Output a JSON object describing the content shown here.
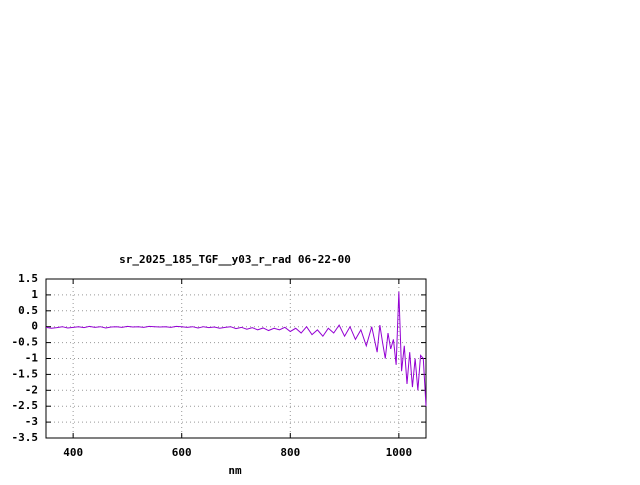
{
  "chart_data": {
    "type": "line",
    "title": "sr_2025_185_TGF__y03_r_rad 06-22-00",
    "x_label": "nm",
    "x": [
      350,
      360,
      370,
      380,
      390,
      400,
      410,
      420,
      430,
      440,
      450,
      460,
      470,
      480,
      490,
      500,
      510,
      520,
      530,
      540,
      550,
      560,
      570,
      580,
      590,
      600,
      610,
      620,
      630,
      640,
      650,
      660,
      670,
      680,
      690,
      700,
      710,
      720,
      730,
      740,
      750,
      760,
      770,
      780,
      790,
      800,
      810,
      820,
      830,
      840,
      850,
      860,
      870,
      880,
      890,
      900,
      910,
      920,
      930,
      940,
      950,
      960,
      965,
      970,
      975,
      980,
      985,
      990,
      995,
      1000,
      1005,
      1010,
      1015,
      1020,
      1025,
      1030,
      1035,
      1040,
      1045,
      1050
    ],
    "series": [
      {
        "color": "#9400d3",
        "values": [
          -0.02,
          -0.05,
          -0.03,
          0.0,
          -0.04,
          -0.02,
          0.0,
          -0.03,
          0.01,
          -0.02,
          0.0,
          -0.04,
          -0.01,
          0.0,
          -0.02,
          0.01,
          -0.01,
          0.0,
          -0.02,
          0.01,
          0.0,
          -0.01,
          0.0,
          -0.02,
          0.01,
          0.0,
          -0.02,
          0.0,
          -0.04,
          0.0,
          -0.03,
          -0.01,
          -0.05,
          -0.02,
          0.0,
          -0.06,
          -0.02,
          -0.08,
          -0.03,
          -0.1,
          -0.04,
          -0.12,
          -0.05,
          -0.1,
          -0.02,
          -0.15,
          -0.05,
          -0.2,
          0.0,
          -0.25,
          -0.1,
          -0.3,
          -0.05,
          -0.2,
          0.05,
          -0.3,
          0.0,
          -0.4,
          -0.1,
          -0.6,
          0.0,
          -0.8,
          0.05,
          -0.5,
          -1.0,
          -0.2,
          -0.7,
          -0.4,
          -1.2,
          1.1,
          -1.4,
          -0.6,
          -1.8,
          -0.8,
          -1.9,
          -1.0,
          -2.0,
          -0.9,
          -1.0,
          -2.5
        ]
      }
    ],
    "xlim": [
      350,
      1050
    ],
    "ylim": [
      -3.5,
      1.5
    ],
    "xticks": [
      400,
      600,
      800,
      1000
    ],
    "yticks": [
      1.5,
      1,
      0.5,
      0,
      -0.5,
      -1,
      -1.5,
      -2,
      -2.5,
      -3,
      -3.5
    ],
    "grid": true
  }
}
